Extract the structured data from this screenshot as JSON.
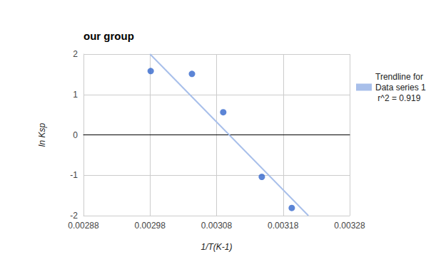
{
  "chart_data": {
    "type": "scatter",
    "title": "our group",
    "x_label": "1/T(K-1)",
    "y_label": "ln Ksp",
    "xlim": [
      0.00288,
      0.00328
    ],
    "xticks": [
      0.00288,
      0.00298,
      0.00308,
      0.00318,
      0.00328
    ],
    "ylim": [
      -2,
      2
    ],
    "yticks": [
      -2,
      -1,
      0,
      1,
      2
    ],
    "grid": true,
    "legend": "right",
    "series": [
      {
        "type": "scatter",
        "marker": "circle",
        "color": "#3366cc",
        "x": [
          0.002981,
          0.003043,
          0.00309,
          0.003148,
          0.003193
        ],
        "values": [
          1.58,
          1.51,
          0.56,
          -1.04,
          -1.81
        ]
      },
      {
        "name": "Trendline for Data series 1 r^2 = 0.919",
        "type": "line",
        "line_style": "solid",
        "color": "#a8bfea",
        "x": [
          0.00298,
          0.003218
        ],
        "values": [
          2,
          -2
        ]
      }
    ]
  }
}
